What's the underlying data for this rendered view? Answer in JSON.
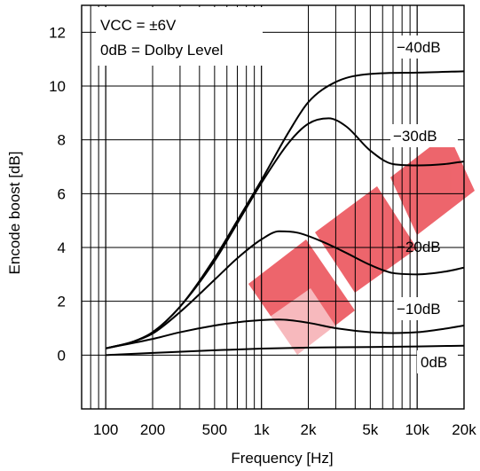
{
  "chart_data": {
    "type": "line",
    "title": "",
    "xlabel": "Frequency [Hz]",
    "ylabel": "Encode boost [dB]",
    "x_scale": "log",
    "xlim": [
      70,
      20000
    ],
    "ylim": [
      -2,
      13
    ],
    "x_ticks": [
      {
        "value": 100,
        "label": "100"
      },
      {
        "value": 200,
        "label": "200"
      },
      {
        "value": 500,
        "label": "500"
      },
      {
        "value": 1000,
        "label": "1k"
      },
      {
        "value": 2000,
        "label": "2k"
      },
      {
        "value": 5000,
        "label": "5k"
      },
      {
        "value": 10000,
        "label": "10k"
      },
      {
        "value": 20000,
        "label": "20k"
      }
    ],
    "y_ticks": [
      {
        "value": 0,
        "label": "0"
      },
      {
        "value": 2,
        "label": "2"
      },
      {
        "value": 4,
        "label": "4"
      },
      {
        "value": 6,
        "label": "6"
      },
      {
        "value": 8,
        "label": "8"
      },
      {
        "value": 10,
        "label": "10"
      },
      {
        "value": 12,
        "label": "12"
      }
    ],
    "grid": true,
    "note_lines": [
      "VCC = ±6V",
      "0dB = Dolby Level"
    ],
    "series": [
      {
        "name": "−40dB",
        "x": [
          100,
          150,
          200,
          300,
          500,
          700,
          1000,
          1500,
          2000,
          3000,
          5000,
          10000,
          20000
        ],
        "y": [
          0.25,
          0.5,
          0.85,
          1.8,
          3.6,
          5.0,
          6.5,
          8.3,
          9.4,
          10.15,
          10.45,
          10.5,
          10.55
        ]
      },
      {
        "name": "−30dB",
        "x": [
          100,
          150,
          200,
          300,
          500,
          700,
          1000,
          1500,
          2000,
          2700,
          3500,
          5000,
          7000,
          10000,
          15000,
          20000
        ],
        "y": [
          0.25,
          0.5,
          0.85,
          1.8,
          3.5,
          4.9,
          6.4,
          7.9,
          8.6,
          8.8,
          8.5,
          7.6,
          7.1,
          7.05,
          7.1,
          7.2
        ]
      },
      {
        "name": "−20dB",
        "x": [
          100,
          150,
          200,
          300,
          500,
          700,
          1000,
          1300,
          1700,
          2500,
          3500,
          5000,
          7000,
          10000,
          15000,
          20000
        ],
        "y": [
          0.25,
          0.5,
          0.8,
          1.6,
          2.8,
          3.6,
          4.3,
          4.6,
          4.55,
          4.2,
          3.8,
          3.35,
          3.05,
          3.0,
          3.1,
          3.25
        ]
      },
      {
        "name": "−10dB",
        "x": [
          100,
          200,
          300,
          500,
          700,
          1000,
          1300,
          2000,
          3000,
          5000,
          7000,
          10000,
          15000,
          20000
        ],
        "y": [
          0.25,
          0.6,
          0.85,
          1.1,
          1.22,
          1.3,
          1.32,
          1.2,
          1.0,
          0.85,
          0.82,
          0.85,
          0.98,
          1.1
        ]
      },
      {
        "name": "0dB",
        "x": [
          100,
          200,
          500,
          1000,
          2000,
          5000,
          10000,
          20000
        ],
        "y": [
          0.0,
          0.08,
          0.18,
          0.24,
          0.28,
          0.3,
          0.32,
          0.35
        ]
      }
    ]
  }
}
